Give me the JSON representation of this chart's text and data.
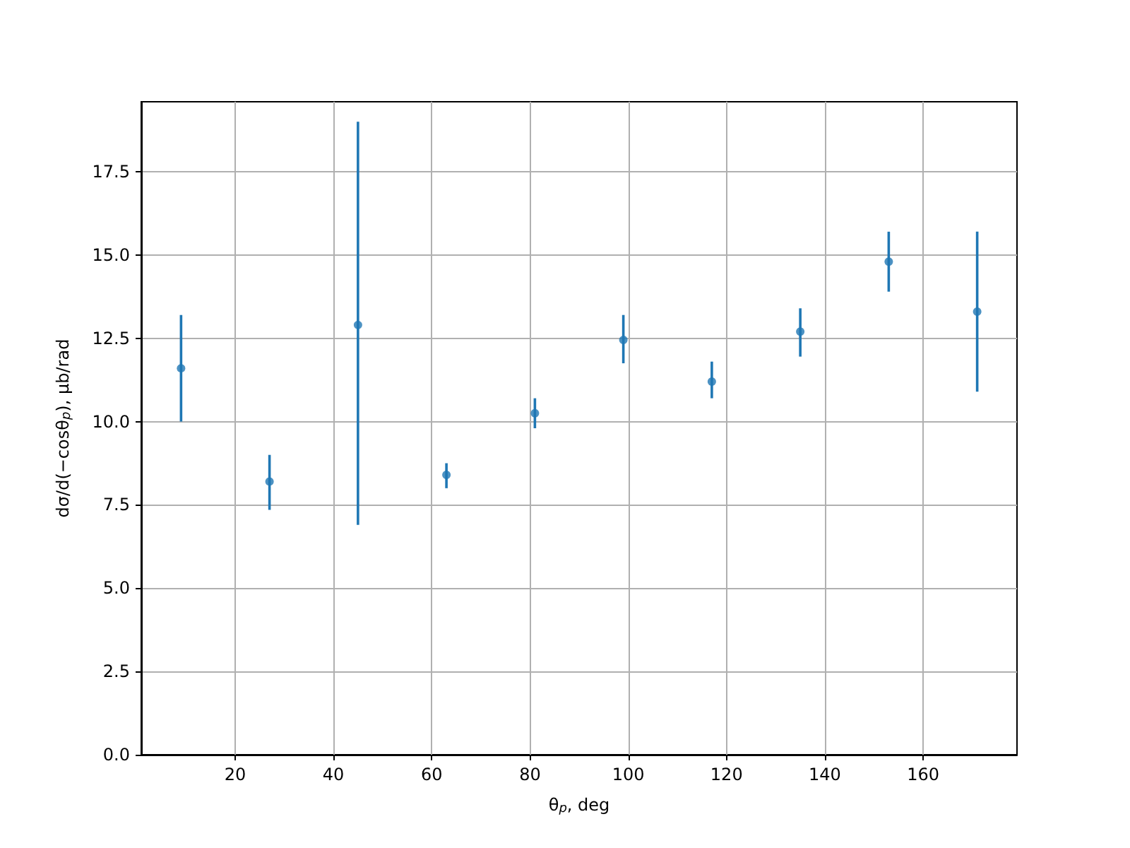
{
  "chart_data": {
    "type": "scatter",
    "xlabel": "θ$_{p}$, deg",
    "ylabel": "dσ/d(−cosθ$_{p}$), μb/rad",
    "x": [
      9,
      27,
      45,
      63,
      81,
      99,
      117,
      135,
      153,
      171
    ],
    "series": [
      {
        "color": "#1f77b4",
        "values": [
          11.6,
          8.2,
          12.9,
          8.4,
          10.25,
          12.45,
          11.2,
          12.7,
          14.8,
          13.3
        ],
        "errors": [
          [
            10.0,
            13.2
          ],
          [
            7.35,
            9.0
          ],
          [
            6.9,
            19.0
          ],
          [
            8.0,
            8.75
          ],
          [
            9.8,
            10.7
          ],
          [
            11.75,
            13.2
          ],
          [
            10.7,
            11.8
          ],
          [
            11.95,
            13.4
          ],
          [
            13.9,
            15.7
          ],
          [
            10.9,
            15.7
          ]
        ]
      }
    ],
    "xlim": [
      0.9,
      179.1
    ],
    "xticks": [
      20,
      40,
      60,
      80,
      100,
      120,
      140,
      160
    ],
    "ylim": [
      0,
      19.6
    ],
    "yticks": [
      {
        "value": 0,
        "label": "0.0"
      },
      {
        "value": 2.5,
        "label": "2.5"
      },
      {
        "value": 5,
        "label": "5.0"
      },
      {
        "value": 7.5,
        "label": "7.5"
      },
      {
        "value": 10,
        "label": "10.0"
      },
      {
        "value": 12.5,
        "label": "12.5"
      },
      {
        "value": 15,
        "label": "15.0"
      },
      {
        "value": 17.5,
        "label": "17.5"
      }
    ],
    "grid": true,
    "marker": "circle"
  }
}
